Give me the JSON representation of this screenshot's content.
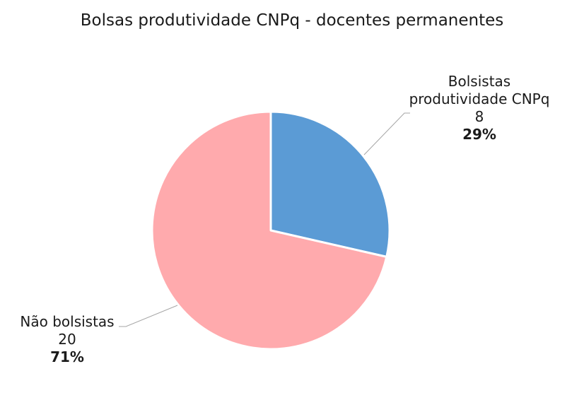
{
  "chart_data": {
    "type": "pie",
    "title": "Bolsas produtividade CNPq - docentes permanentes",
    "slices": [
      {
        "name": "Bolsistas produtividade CNPq",
        "value": 8,
        "percent_label": "29%",
        "color": "#5b9bd5"
      },
      {
        "name": "Não bolsistas",
        "value": 20,
        "percent_label": "71%",
        "color": "#ffaaad"
      }
    ],
    "start_angle_deg": 0,
    "direction": "clockwise",
    "legend": "none",
    "leader_line_color": "#a6a6a6"
  }
}
